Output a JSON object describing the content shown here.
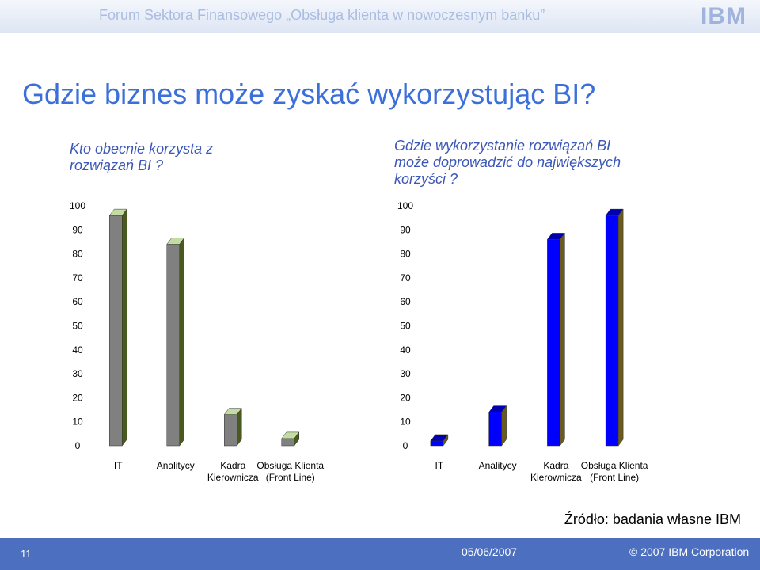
{
  "header": {
    "title": "Forum Sektora Finansowego „Obsługa klienta w nowoczesnym banku”",
    "logo": "IBM"
  },
  "slide_title": "Gdzie biznes może zyskać wykorzystując BI?",
  "chart_data": [
    {
      "type": "bar3d",
      "title": "Kto obecnie korzysta z rozwiązań BI ?",
      "categories": [
        "IT",
        "Analitycy",
        "Kadra\nKierownicza",
        "Obsługa Klienta\n(Front Line)"
      ],
      "values": [
        96,
        84,
        13,
        3
      ],
      "color": "#808080",
      "top_color": "#c4dca4",
      "side_color": "#4a5a1e",
      "ylim": [
        0,
        100
      ],
      "yticks": [
        0,
        10,
        20,
        30,
        40,
        50,
        60,
        70,
        80,
        90,
        100
      ]
    },
    {
      "type": "bar3d",
      "title": "Gdzie wykorzystanie rozwiązań BI może doprowadzić do największych korzyści ?",
      "categories": [
        "IT",
        "Analitycy",
        "Kadra\nKierownicza",
        "Obsługa Klienta\n(Front Line)"
      ],
      "values": [
        2,
        14,
        86,
        96
      ],
      "color": "#0000ff",
      "top_color": "#0000b0",
      "side_color": "#6a5a20",
      "ylim": [
        0,
        100
      ],
      "yticks": [
        0,
        10,
        20,
        30,
        40,
        50,
        60,
        70,
        80,
        90,
        100
      ]
    }
  ],
  "source": "Źródło: badania własne IBM",
  "footer": {
    "page": "11",
    "date": "05/06/2007",
    "copyright": "© 2007 IBM Corporation"
  }
}
